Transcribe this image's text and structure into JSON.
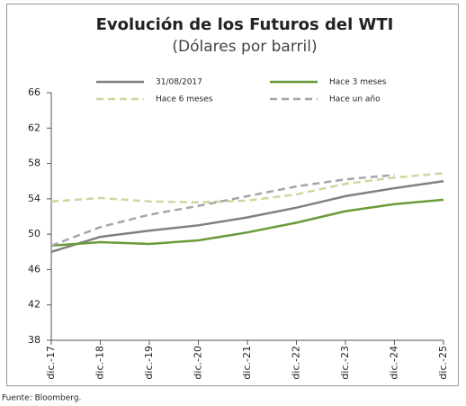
{
  "chart_data": {
    "type": "line",
    "title": "Evolución de los Futuros del WTI",
    "subtitle": "(Dólares por barril)",
    "categories": [
      "dic.-17",
      "dic.-18",
      "dic.-19",
      "dic.-20",
      "dic.-21",
      "dic.-22",
      "dic.-23",
      "dic.-24",
      "dic.-25"
    ],
    "series": [
      {
        "name": "31/08/2017",
        "color": "#808080",
        "dashed": false,
        "values": [
          48.0,
          49.7,
          50.4,
          51.0,
          51.9,
          53.0,
          54.3,
          55.2,
          56.0
        ]
      },
      {
        "name": "Hace 3 meses",
        "color": "#6b9a3a",
        "dashed": false,
        "values": [
          48.7,
          49.1,
          48.9,
          49.3,
          50.2,
          51.3,
          52.6,
          53.4,
          53.9
        ]
      },
      {
        "name": "Hace 6 meses",
        "color": "#c6da9c",
        "dashed": true,
        "values": [
          53.7,
          54.1,
          53.7,
          53.6,
          53.8,
          54.5,
          55.7,
          56.4,
          56.9
        ]
      },
      {
        "name": "Hace un año",
        "color": "#a6a6a6",
        "dashed": true,
        "values": [
          48.7,
          50.8,
          52.2,
          53.2,
          54.3,
          55.4,
          56.2,
          56.7,
          null
        ]
      }
    ],
    "ylim": [
      38,
      66
    ],
    "yticks": [
      38,
      42,
      46,
      50,
      54,
      58,
      62,
      66
    ],
    "grid": false,
    "source": "Fuente: Bloomberg."
  }
}
